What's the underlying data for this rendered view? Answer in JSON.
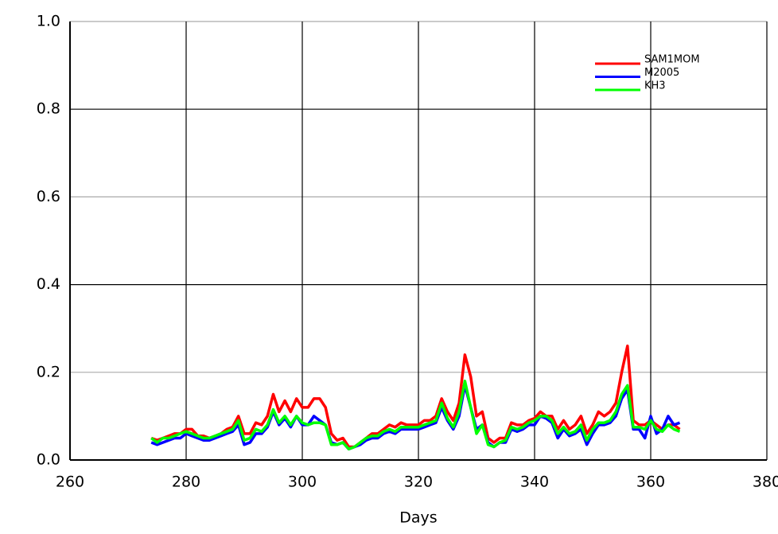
{
  "chart_data": {
    "type": "line",
    "xlabel": "Days",
    "x": [
      274,
      275,
      276,
      277,
      278,
      279,
      280,
      281,
      282,
      283,
      284,
      285,
      286,
      287,
      288,
      289,
      290,
      291,
      292,
      293,
      294,
      295,
      296,
      297,
      298,
      299,
      300,
      301,
      302,
      303,
      304,
      305,
      306,
      307,
      308,
      309,
      310,
      311,
      312,
      313,
      314,
      315,
      316,
      317,
      318,
      319,
      320,
      321,
      322,
      323,
      324,
      325,
      326,
      327,
      328,
      329,
      330,
      331,
      332,
      333,
      334,
      335,
      336,
      337,
      338,
      339,
      340,
      341,
      342,
      343,
      344,
      345,
      346,
      347,
      348,
      349,
      350,
      351,
      352,
      353,
      354,
      355,
      356,
      357,
      358,
      359,
      360,
      361,
      362,
      363,
      364,
      365
    ],
    "series": [
      {
        "name": "SAM1MOM",
        "color": "#ff0000",
        "values": [
          0.05,
          0.045,
          0.05,
          0.055,
          0.06,
          0.06,
          0.07,
          0.07,
          0.055,
          0.055,
          0.05,
          0.055,
          0.06,
          0.07,
          0.075,
          0.1,
          0.06,
          0.06,
          0.085,
          0.08,
          0.1,
          0.15,
          0.11,
          0.135,
          0.11,
          0.14,
          0.12,
          0.12,
          0.14,
          0.14,
          0.12,
          0.06,
          0.045,
          0.05,
          0.03,
          0.03,
          0.04,
          0.05,
          0.06,
          0.06,
          0.07,
          0.08,
          0.075,
          0.085,
          0.08,
          0.08,
          0.08,
          0.09,
          0.09,
          0.1,
          0.14,
          0.11,
          0.09,
          0.13,
          0.24,
          0.19,
          0.1,
          0.11,
          0.05,
          0.04,
          0.05,
          0.05,
          0.085,
          0.08,
          0.08,
          0.09,
          0.095,
          0.11,
          0.1,
          0.1,
          0.07,
          0.09,
          0.07,
          0.08,
          0.1,
          0.06,
          0.08,
          0.11,
          0.1,
          0.11,
          0.13,
          0.2,
          0.26,
          0.09,
          0.08,
          0.08,
          0.09,
          0.08,
          0.07,
          0.08,
          0.08,
          0.07
        ]
      },
      {
        "name": "M2005",
        "color": "#0000ff",
        "values": [
          0.04,
          0.035,
          0.04,
          0.045,
          0.05,
          0.05,
          0.06,
          0.055,
          0.05,
          0.045,
          0.045,
          0.05,
          0.055,
          0.06,
          0.065,
          0.08,
          0.035,
          0.04,
          0.06,
          0.06,
          0.075,
          0.11,
          0.08,
          0.095,
          0.075,
          0.1,
          0.08,
          0.08,
          0.1,
          0.09,
          0.08,
          0.04,
          0.035,
          0.04,
          0.025,
          0.03,
          0.035,
          0.045,
          0.05,
          0.05,
          0.06,
          0.065,
          0.06,
          0.07,
          0.07,
          0.07,
          0.07,
          0.075,
          0.08,
          0.085,
          0.12,
          0.09,
          0.07,
          0.1,
          0.17,
          0.12,
          0.07,
          0.08,
          0.04,
          0.03,
          0.04,
          0.04,
          0.07,
          0.065,
          0.07,
          0.08,
          0.08,
          0.1,
          0.095,
          0.085,
          0.05,
          0.07,
          0.055,
          0.06,
          0.07,
          0.035,
          0.06,
          0.08,
          0.08,
          0.085,
          0.1,
          0.14,
          0.16,
          0.07,
          0.07,
          0.05,
          0.1,
          0.06,
          0.07,
          0.1,
          0.08,
          0.085
        ]
      },
      {
        "name": "KH3",
        "color": "#00ff00",
        "values": [
          0.05,
          0.04,
          0.05,
          0.05,
          0.055,
          0.06,
          0.065,
          0.06,
          0.055,
          0.05,
          0.05,
          0.055,
          0.06,
          0.065,
          0.07,
          0.09,
          0.045,
          0.05,
          0.07,
          0.065,
          0.08,
          0.115,
          0.085,
          0.1,
          0.08,
          0.1,
          0.085,
          0.08,
          0.085,
          0.085,
          0.08,
          0.035,
          0.035,
          0.04,
          0.025,
          0.03,
          0.04,
          0.05,
          0.055,
          0.055,
          0.065,
          0.07,
          0.065,
          0.075,
          0.075,
          0.075,
          0.075,
          0.08,
          0.085,
          0.09,
          0.13,
          0.095,
          0.075,
          0.11,
          0.18,
          0.12,
          0.06,
          0.08,
          0.035,
          0.03,
          0.04,
          0.045,
          0.075,
          0.07,
          0.075,
          0.085,
          0.09,
          0.1,
          0.1,
          0.09,
          0.06,
          0.075,
          0.06,
          0.065,
          0.08,
          0.045,
          0.07,
          0.085,
          0.085,
          0.09,
          0.11,
          0.15,
          0.17,
          0.075,
          0.075,
          0.07,
          0.09,
          0.07,
          0.065,
          0.08,
          0.07,
          0.065
        ]
      }
    ],
    "xlim": [
      260,
      380
    ],
    "xticks": [
      260,
      280,
      300,
      320,
      340,
      360,
      380
    ],
    "ylim": [
      0,
      1
    ],
    "yticks": [
      {
        "value": 0,
        "label": "0.0"
      },
      0.2,
      0.4,
      0.6,
      0.8,
      {
        "value": 1,
        "label": "1.0"
      }
    ],
    "grid": true,
    "legend": "upper right"
  }
}
